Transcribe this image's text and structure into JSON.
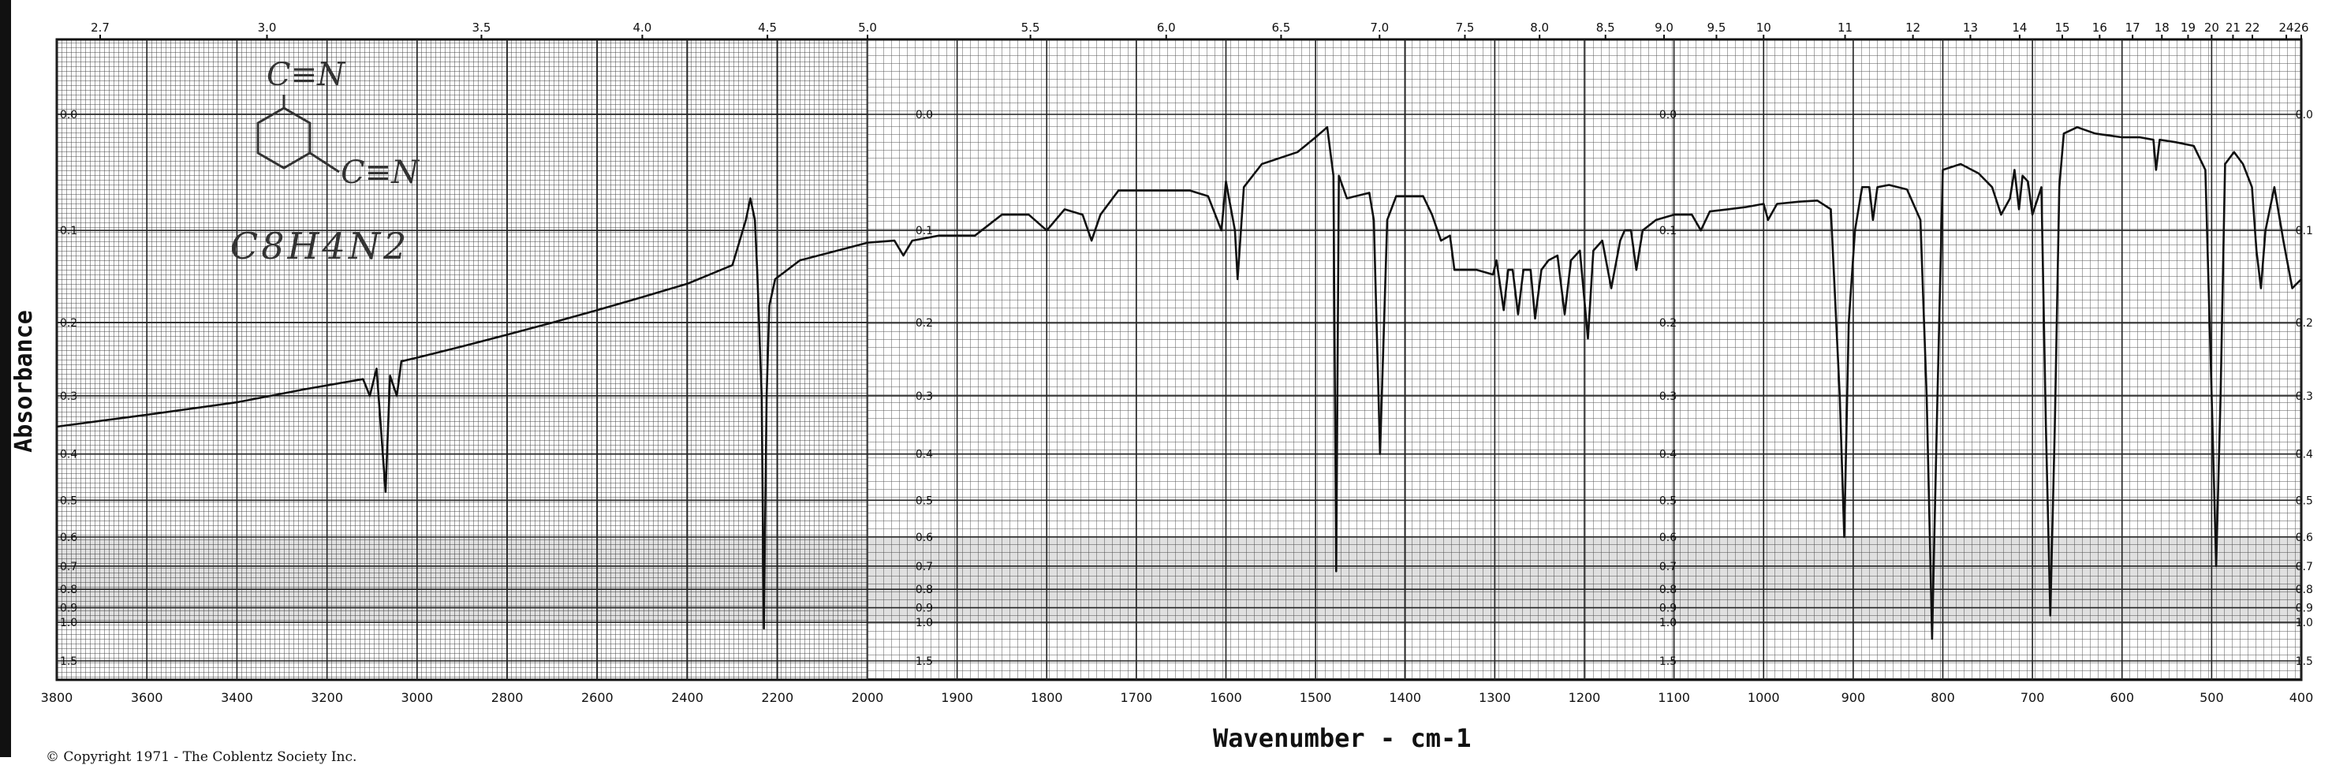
{
  "chart_data": {
    "type": "line",
    "title": "",
    "xlabel": "Wavenumber - cm-1",
    "ylabel": "Absorbance",
    "formula": "C8H4N2",
    "structure": [
      "C≡N",
      "C≡N"
    ],
    "copyright": "© Copyright 1971 - The Coblentz Society Inc.",
    "x_range_cm1": [
      3800,
      400
    ],
    "x_ticks_cm1": [
      3800,
      3600,
      3400,
      3200,
      3000,
      2800,
      2600,
      2400,
      2200,
      2000,
      1900,
      1800,
      1700,
      1600,
      1500,
      1400,
      1300,
      1200,
      1100,
      1000,
      900,
      800,
      700,
      600,
      500,
      400
    ],
    "x_tick_labels": [
      "3800",
      "3600",
      "3400",
      "3200",
      "3000",
      "2800",
      "2600",
      "2400",
      "2200",
      "2000",
      "1900",
      "1800",
      "1700",
      "1600",
      "1500",
      "1400",
      "1300",
      "1200",
      "1100",
      "1000",
      "900",
      "800",
      "700",
      "600",
      "500",
      "400"
    ],
    "top_ticks_um": [
      2.7,
      3.0,
      3.5,
      4.0,
      4.5,
      5.0,
      5.5,
      6.0,
      6.5,
      7.0,
      7.5,
      8.0,
      8.5,
      9.0,
      9.5,
      10,
      11,
      12,
      13,
      14,
      15,
      16,
      17,
      18,
      19,
      20,
      21,
      22,
      24,
      26
    ],
    "top_tick_labels": [
      "2.7",
      "3.0",
      "3.5",
      "4.0",
      "4.5",
      "5.0",
      "5.5",
      "6.0",
      "6.5",
      "7.0",
      "7.5",
      "8.0",
      "8.5",
      "9.0",
      "9.5",
      "10",
      "11",
      "12",
      "13",
      "14",
      "15",
      "16",
      "17",
      "18",
      "19",
      "20",
      "21",
      "22",
      "24",
      "26"
    ],
    "y_scale": "absorbance (log)",
    "y_ticks": [
      0.0,
      0.1,
      0.2,
      0.3,
      0.4,
      0.5,
      0.6,
      0.7,
      0.8,
      0.9,
      1.0,
      1.5
    ],
    "y_tick_labels": [
      "0.0",
      "0.1",
      "0.2",
      "0.3",
      "0.4",
      "0.5",
      "0.6",
      "0.7",
      "0.8",
      "0.9",
      "1.0",
      "1.5"
    ],
    "y_label_columns_cm1": [
      3800,
      1950,
      1120,
      410
    ],
    "grid": true,
    "series": [
      {
        "points": [
          [
            3800,
            0.35
          ],
          [
            3600,
            0.33
          ],
          [
            3400,
            0.31
          ],
          [
            3250,
            0.29
          ],
          [
            3120,
            0.275
          ],
          [
            3105,
            0.3
          ],
          [
            3090,
            0.26
          ],
          [
            3070,
            0.48
          ],
          [
            3060,
            0.27
          ],
          [
            3045,
            0.3
          ],
          [
            3035,
            0.25
          ],
          [
            3000,
            0.245
          ],
          [
            2900,
            0.23
          ],
          [
            2800,
            0.215
          ],
          [
            2700,
            0.2
          ],
          [
            2600,
            0.185
          ],
          [
            2500,
            0.17
          ],
          [
            2400,
            0.155
          ],
          [
            2300,
            0.135
          ],
          [
            2270,
            0.09
          ],
          [
            2260,
            0.07
          ],
          [
            2250,
            0.09
          ],
          [
            2245,
            0.14
          ],
          [
            2235,
            0.3
          ],
          [
            2230,
            1.05
          ],
          [
            2224,
            0.3
          ],
          [
            2218,
            0.18
          ],
          [
            2205,
            0.15
          ],
          [
            2150,
            0.13
          ],
          [
            2050,
            0.118
          ],
          [
            2000,
            0.112
          ],
          [
            1970,
            0.11
          ],
          [
            1960,
            0.125
          ],
          [
            1950,
            0.11
          ],
          [
            1920,
            0.105
          ],
          [
            1880,
            0.105
          ],
          [
            1850,
            0.085
          ],
          [
            1820,
            0.085
          ],
          [
            1800,
            0.1
          ],
          [
            1780,
            0.08
          ],
          [
            1760,
            0.085
          ],
          [
            1750,
            0.11
          ],
          [
            1740,
            0.085
          ],
          [
            1720,
            0.063
          ],
          [
            1640,
            0.063
          ],
          [
            1620,
            0.068
          ],
          [
            1605,
            0.1
          ],
          [
            1600,
            0.055
          ],
          [
            1590,
            0.1
          ],
          [
            1587,
            0.15
          ],
          [
            1580,
            0.06
          ],
          [
            1560,
            0.04
          ],
          [
            1520,
            0.03
          ],
          [
            1500,
            0.018
          ],
          [
            1487,
            0.01
          ],
          [
            1480,
            0.05
          ],
          [
            1477,
            0.72
          ],
          [
            1474,
            0.05
          ],
          [
            1465,
            0.07
          ],
          [
            1440,
            0.065
          ],
          [
            1435,
            0.09
          ],
          [
            1428,
            0.4
          ],
          [
            1420,
            0.09
          ],
          [
            1410,
            0.068
          ],
          [
            1380,
            0.068
          ],
          [
            1370,
            0.085
          ],
          [
            1360,
            0.11
          ],
          [
            1350,
            0.105
          ],
          [
            1345,
            0.14
          ],
          [
            1320,
            0.14
          ],
          [
            1302,
            0.145
          ],
          [
            1298,
            0.13
          ],
          [
            1290,
            0.185
          ],
          [
            1285,
            0.14
          ],
          [
            1280,
            0.14
          ],
          [
            1274,
            0.19
          ],
          [
            1268,
            0.14
          ],
          [
            1260,
            0.14
          ],
          [
            1255,
            0.195
          ],
          [
            1248,
            0.14
          ],
          [
            1240,
            0.13
          ],
          [
            1230,
            0.125
          ],
          [
            1222,
            0.19
          ],
          [
            1215,
            0.13
          ],
          [
            1205,
            0.12
          ],
          [
            1196,
            0.22
          ],
          [
            1190,
            0.12
          ],
          [
            1180,
            0.11
          ],
          [
            1170,
            0.16
          ],
          [
            1160,
            0.11
          ],
          [
            1155,
            0.1
          ],
          [
            1148,
            0.1
          ],
          [
            1142,
            0.14
          ],
          [
            1135,
            0.1
          ],
          [
            1120,
            0.09
          ],
          [
            1100,
            0.085
          ],
          [
            1080,
            0.085
          ],
          [
            1070,
            0.1
          ],
          [
            1060,
            0.082
          ],
          [
            1040,
            0.08
          ],
          [
            1020,
            0.078
          ],
          [
            1000,
            0.075
          ],
          [
            995,
            0.09
          ],
          [
            985,
            0.075
          ],
          [
            960,
            0.073
          ],
          [
            940,
            0.072
          ],
          [
            925,
            0.08
          ],
          [
            915,
            0.3
          ],
          [
            910,
            0.6
          ],
          [
            905,
            0.2
          ],
          [
            898,
            0.1
          ],
          [
            890,
            0.06
          ],
          [
            882,
            0.06
          ],
          [
            878,
            0.09
          ],
          [
            873,
            0.06
          ],
          [
            860,
            0.058
          ],
          [
            840,
            0.062
          ],
          [
            825,
            0.09
          ],
          [
            818,
            0.3
          ],
          [
            812,
            1.15
          ],
          [
            806,
            0.3
          ],
          [
            800,
            0.045
          ],
          [
            780,
            0.04
          ],
          [
            760,
            0.048
          ],
          [
            745,
            0.06
          ],
          [
            735,
            0.085
          ],
          [
            725,
            0.07
          ],
          [
            720,
            0.045
          ],
          [
            715,
            0.08
          ],
          [
            711,
            0.05
          ],
          [
            705,
            0.055
          ],
          [
            700,
            0.085
          ],
          [
            690,
            0.06
          ],
          [
            685,
            0.35
          ],
          [
            680,
            0.95
          ],
          [
            675,
            0.35
          ],
          [
            670,
            0.06
          ],
          [
            665,
            0.015
          ],
          [
            650,
            0.01
          ],
          [
            630,
            0.015
          ],
          [
            600,
            0.018
          ],
          [
            580,
            0.018
          ],
          [
            565,
            0.02
          ],
          [
            562,
            0.045
          ],
          [
            558,
            0.02
          ],
          [
            540,
            0.022
          ],
          [
            520,
            0.025
          ],
          [
            507,
            0.045
          ],
          [
            500,
            0.3
          ],
          [
            495,
            0.7
          ],
          [
            490,
            0.3
          ],
          [
            485,
            0.04
          ],
          [
            475,
            0.03
          ],
          [
            465,
            0.04
          ],
          [
            455,
            0.06
          ],
          [
            450,
            0.12
          ],
          [
            445,
            0.16
          ],
          [
            440,
            0.1
          ],
          [
            430,
            0.06
          ],
          [
            420,
            0.11
          ],
          [
            410,
            0.16
          ],
          [
            400,
            0.15
          ]
        ]
      }
    ]
  }
}
